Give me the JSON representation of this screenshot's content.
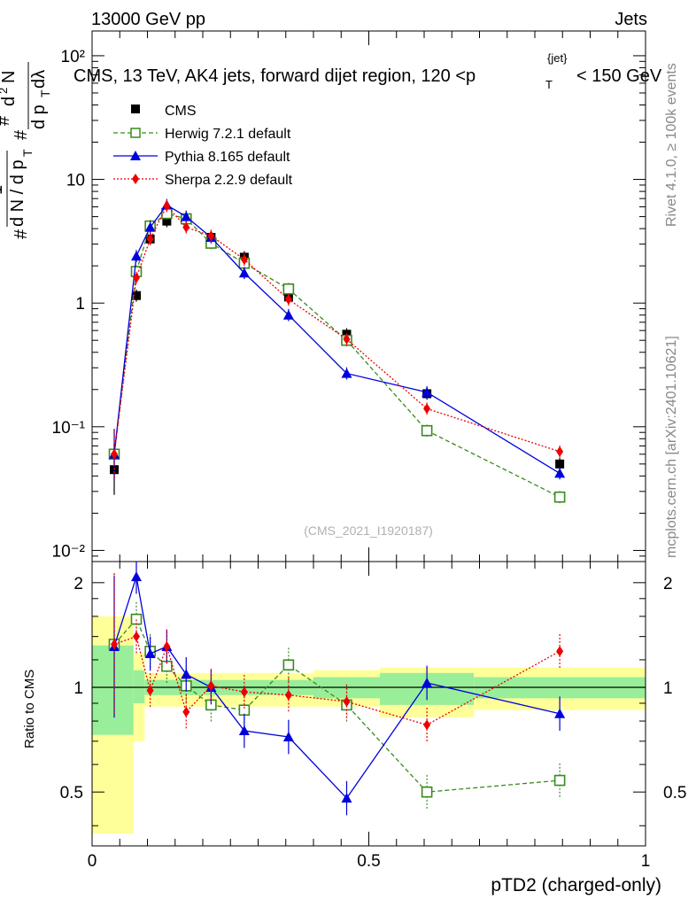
{
  "header": {
    "left": "13000 GeV pp",
    "right": "Jets"
  },
  "side_labels": {
    "rivet": "Rivet 4.1.0, ≥ 100k events",
    "mcplots": "mcplots.cern.ch [arXiv:2401.10621]"
  },
  "colors": {
    "cms": "#000000",
    "herwig": "#3a8a1e",
    "pythia": "#0000dd",
    "sherpa": "#ee0000",
    "band_inner": "#99ee99",
    "band_outer": "#ffff99"
  },
  "chart_data": [
    {
      "type": "line",
      "panel": "main",
      "title": "CMS, 13 TeV, AK4 jets, forward dijet region, 120 <p_T^{jet}< 150 GeV",
      "ylabel": "1/(dN/dp_T) d²N/(dp_T dλ)",
      "xlim": [
        0,
        1
      ],
      "ylim": [
        0.008,
        150
      ],
      "yscale": "log",
      "yticks": [
        "10⁻²",
        "10⁻¹",
        "1",
        "10",
        "10²"
      ],
      "analysis_id": "(CMS_2021_I1920187)",
      "x": [
        0.04,
        0.08,
        0.105,
        0.135,
        0.17,
        0.215,
        0.275,
        0.355,
        0.46,
        0.605,
        0.845
      ],
      "series": [
        {
          "name": "CMS",
          "key": "cms",
          "values": [
            0.045,
            1.15,
            3.3,
            4.6,
            4.8,
            3.4,
            2.35,
            1.12,
            0.56,
            0.185,
            0.05
          ]
        },
        {
          "name": "Herwig 7.2.1 default",
          "key": "herwig",
          "values": [
            0.06,
            1.8,
            4.2,
            5.3,
            4.8,
            3.05,
            2.1,
            1.3,
            0.5,
            0.093,
            0.027
          ]
        },
        {
          "name": "Pythia 8.165 default",
          "key": "pythia",
          "values": [
            0.06,
            2.4,
            4.1,
            6.2,
            5.0,
            3.4,
            1.75,
            0.8,
            0.27,
            0.19,
            0.042
          ]
        },
        {
          "name": "Sherpa 2.2.9 default",
          "key": "sherpa",
          "values": [
            0.06,
            1.6,
            3.3,
            6.1,
            4.1,
            3.5,
            2.25,
            1.07,
            0.51,
            0.14,
            0.063
          ]
        }
      ]
    },
    {
      "type": "line",
      "panel": "ratio",
      "ylabel": "Ratio to CMS",
      "xlabel": "pTD2 (charged-only)",
      "xlim": [
        0,
        1
      ],
      "ylim": [
        0.35,
        2.3
      ],
      "yscale": "log",
      "xticks": [
        "0",
        "0.5",
        "1"
      ],
      "yticks": [
        "0.5",
        "1",
        "2"
      ],
      "x": [
        0.04,
        0.08,
        0.105,
        0.135,
        0.17,
        0.215,
        0.275,
        0.355,
        0.46,
        0.605,
        0.845
      ],
      "series": [
        {
          "name": "Herwig 7.2.1 default",
          "key": "herwig",
          "values": [
            1.33,
            1.57,
            1.27,
            1.15,
            1.01,
            0.89,
            0.86,
            1.16,
            0.89,
            0.5,
            0.54
          ]
        },
        {
          "name": "Pythia 8.165 default",
          "key": "pythia",
          "values": [
            1.31,
            2.08,
            1.25,
            1.31,
            1.09,
            1.0,
            0.75,
            0.72,
            0.48,
            1.03,
            0.84
          ]
        },
        {
          "name": "Sherpa 2.2.9 default",
          "key": "sherpa",
          "values": [
            1.33,
            1.4,
            0.98,
            1.31,
            0.85,
            1.01,
            0.97,
            0.95,
            0.91,
            0.78,
            1.27
          ]
        }
      ],
      "bands": {
        "x_edges": [
          0,
          0.075,
          0.095,
          0.4,
          0.52,
          0.69,
          1.0
        ],
        "inner": [
          [
            0.73,
            1.32
          ],
          [
            0.9,
            1.12
          ],
          [
            0.95,
            1.05
          ],
          [
            0.93,
            1.07
          ],
          [
            0.89,
            1.1
          ],
          [
            0.93,
            1.07
          ]
        ],
        "outer": [
          [
            0.38,
            1.6
          ],
          [
            0.7,
            1.25
          ],
          [
            0.88,
            1.1
          ],
          [
            0.88,
            1.12
          ],
          [
            0.82,
            1.14
          ],
          [
            0.86,
            1.14
          ]
        ]
      }
    }
  ]
}
